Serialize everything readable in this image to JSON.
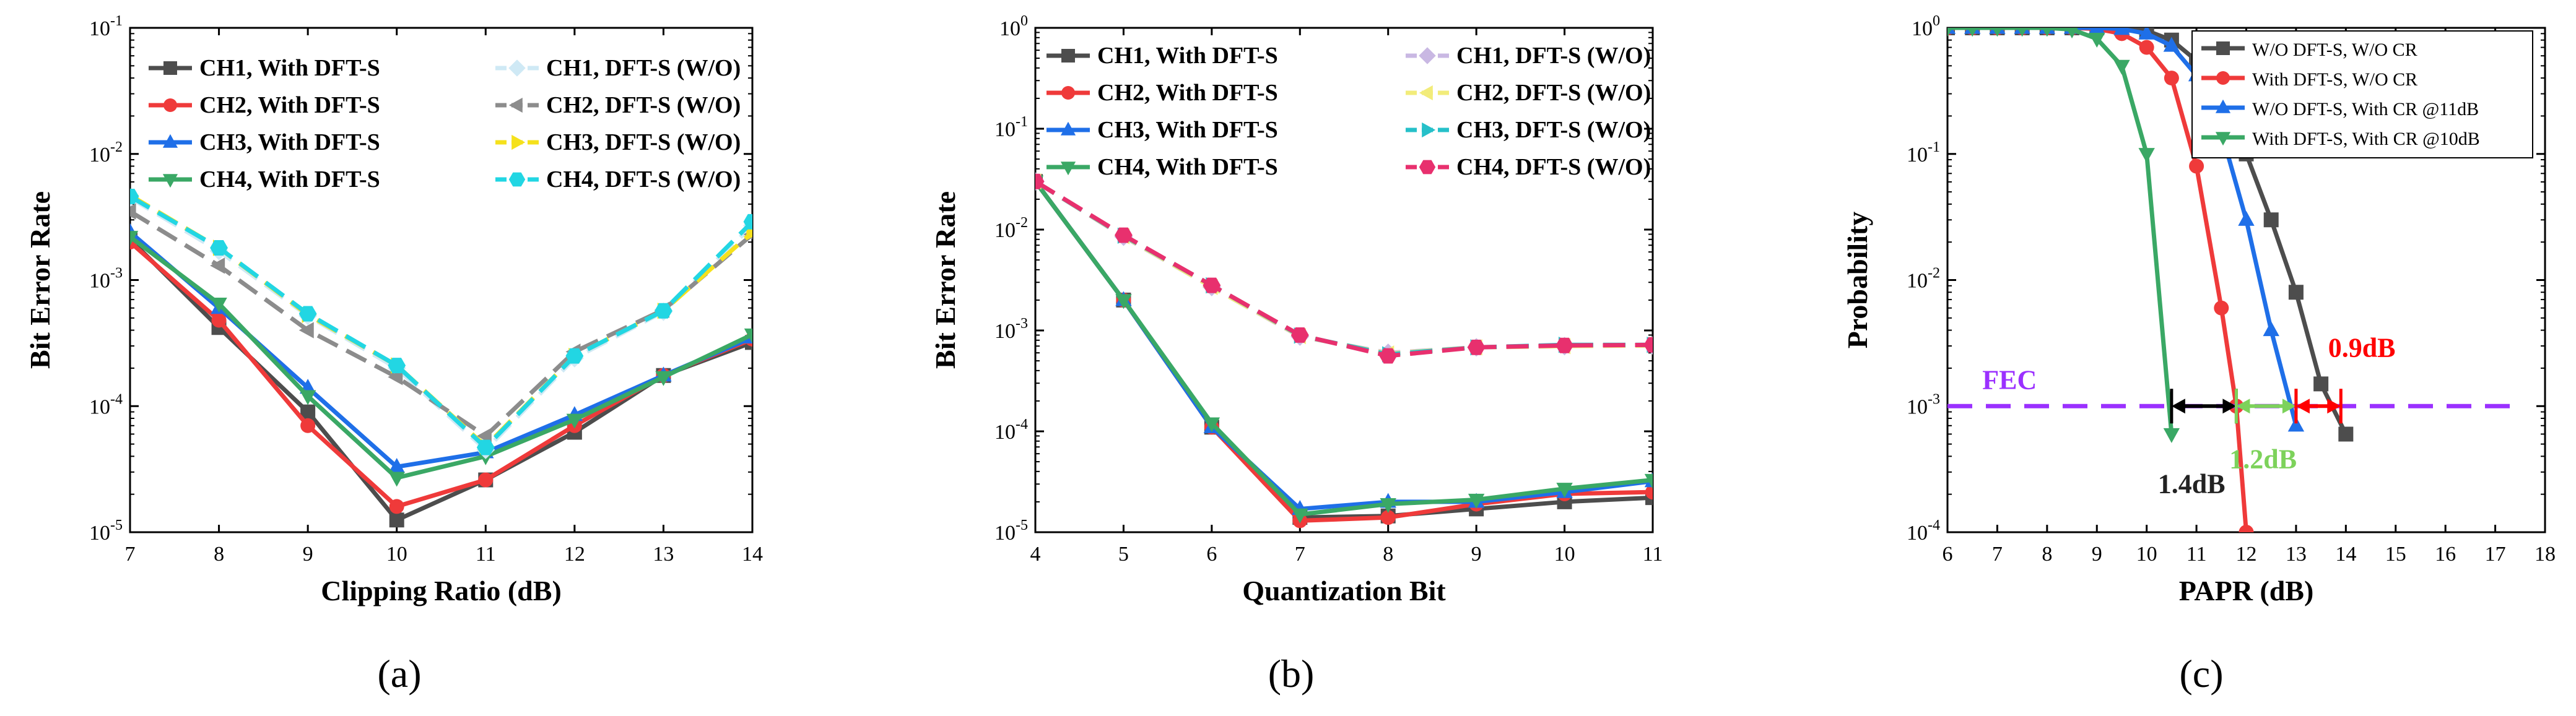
{
  "colors": {
    "ch1": "#4d4d4d",
    "ch2": "#ef3a3a",
    "ch3": "#1f6fe8",
    "ch4": "#3aa865",
    "ch1_wo": "#cfe9f5",
    "ch2_wo": "#8c8c8c",
    "ch3_wo": "#f5e11c",
    "ch4_wo": "#22d6e3",
    "b_ch1_wo": "#c9b8e3",
    "b_ch2_wo": "#f2ec7a",
    "b_ch3_wo": "#26c0c9",
    "b_ch4_wo": "#e8306e",
    "fec": "#9b30ff",
    "arrow_black": "#000000",
    "arrow_green": "#7dd25b",
    "arrow_red": "#ff0000"
  },
  "chart_data": [
    {
      "type": "line",
      "caption": "(a)",
      "xlabel": "Clipping Ratio (dB)",
      "ylabel": "Bit Error Rate",
      "yscale": "log",
      "xlim": [
        7,
        14
      ],
      "ylim_exp": [
        -5,
        -1
      ],
      "xticks": [
        "7",
        "8",
        "9",
        "10",
        "11",
        "12",
        "13",
        "14"
      ],
      "x": [
        7,
        8,
        9,
        10,
        11,
        12,
        13,
        14
      ],
      "series": [
        {
          "name": "CH1, With DFT-S",
          "colorKey": "ch1",
          "dash": false,
          "marker": "square",
          "values": [
            0.0021,
            0.00042,
            9e-05,
            1.25e-05,
            2.6e-05,
            6.2e-05,
            0.000175,
            0.00032
          ]
        },
        {
          "name": "CH2, With DFT-S",
          "colorKey": "ch2",
          "dash": false,
          "marker": "circle",
          "values": [
            0.002,
            0.00048,
            7e-05,
            1.6e-05,
            2.6e-05,
            7e-05,
            0.000175,
            0.00034
          ]
        },
        {
          "name": "CH3, With DFT-S",
          "colorKey": "ch3",
          "dash": false,
          "marker": "triangle-up",
          "values": [
            0.0024,
            0.0006,
            0.00014,
            3.3e-05,
            4.3e-05,
            8.5e-05,
            0.000175,
            0.00035
          ]
        },
        {
          "name": "CH4, With DFT-S",
          "colorKey": "ch4",
          "dash": false,
          "marker": "triangle-down",
          "values": [
            0.0022,
            0.00065,
            0.00012,
            2.7e-05,
            4e-05,
            7.8e-05,
            0.00017,
            0.00037
          ]
        },
        {
          "name": "CH1, DFT-S (W/O)",
          "colorKey": "ch1_wo",
          "dash": true,
          "marker": "diamond",
          "values": [
            0.0045,
            0.0017,
            0.00052,
            0.0002,
            4.5e-05,
            0.00024,
            0.00056,
            0.0027
          ]
        },
        {
          "name": "CH2, DFT-S (W/O)",
          "colorKey": "ch2_wo",
          "dash": true,
          "marker": "triangle-left",
          "values": [
            0.0035,
            0.0013,
            0.0004,
            0.00017,
            5.8e-05,
            0.00027,
            0.00058,
            0.0023
          ]
        },
        {
          "name": "CH3, DFT-S (W/O)",
          "colorKey": "ch3_wo",
          "dash": true,
          "marker": "triangle-right",
          "values": [
            0.0047,
            0.0018,
            0.00053,
            0.00021,
            4.8e-05,
            0.00025,
            0.00057,
            0.0024
          ]
        },
        {
          "name": "CH4, DFT-S (W/O)",
          "colorKey": "ch4_wo",
          "dash": true,
          "marker": "hexagon",
          "values": [
            0.0046,
            0.0018,
            0.00054,
            0.00021,
            4.7e-05,
            0.00025,
            0.00057,
            0.0029
          ]
        }
      ]
    },
    {
      "type": "line",
      "caption": "(b)",
      "xlabel": "Quantization Bit",
      "ylabel": "Bit Error Rate",
      "yscale": "log",
      "xlim": [
        4,
        11
      ],
      "ylim_exp": [
        -5,
        0
      ],
      "xticks": [
        "4",
        "5",
        "6",
        "7",
        "8",
        "9",
        "10",
        "11"
      ],
      "x": [
        4,
        5,
        6,
        7,
        8,
        9,
        10,
        11
      ],
      "series": [
        {
          "name": "CH1, With DFT-S",
          "colorKey": "ch1",
          "dash": false,
          "marker": "square",
          "values": [
            0.03,
            0.002,
            0.00011,
            1.4e-05,
            1.45e-05,
            1.7e-05,
            2e-05,
            2.2e-05
          ]
        },
        {
          "name": "CH2, With DFT-S",
          "colorKey": "ch2",
          "dash": false,
          "marker": "circle",
          "values": [
            0.03,
            0.002,
            0.00011,
            1.3e-05,
            1.4e-05,
            1.9e-05,
            2.4e-05,
            2.5e-05
          ]
        },
        {
          "name": "CH3, With DFT-S",
          "colorKey": "ch3",
          "dash": false,
          "marker": "triangle-up",
          "values": [
            0.03,
            0.002,
            0.00011,
            1.7e-05,
            2e-05,
            2e-05,
            2.5e-05,
            3.2e-05
          ]
        },
        {
          "name": "CH4, With DFT-S",
          "colorKey": "ch4",
          "dash": false,
          "marker": "triangle-down",
          "values": [
            0.03,
            0.002,
            0.00012,
            1.5e-05,
            1.9e-05,
            2.1e-05,
            2.7e-05,
            3.3e-05
          ]
        },
        {
          "name": "CH1, DFT-S (W/O)",
          "colorKey": "b_ch1_wo",
          "dash": true,
          "marker": "diamond",
          "values": [
            0.03,
            0.0085,
            0.0027,
            0.00087,
            0.0006,
            0.00068,
            0.0007,
            0.00071
          ]
        },
        {
          "name": "CH2, DFT-S (W/O)",
          "colorKey": "b_ch2_wo",
          "dash": true,
          "marker": "triangle-left",
          "values": [
            0.03,
            0.0086,
            0.0027,
            0.00088,
            0.00059,
            0.00068,
            0.0007,
            0.00071
          ]
        },
        {
          "name": "CH3, DFT-S (W/O)",
          "colorKey": "b_ch3_wo",
          "dash": true,
          "marker": "triangle-right",
          "values": [
            0.03,
            0.0087,
            0.0028,
            0.00089,
            0.00058,
            0.00068,
            0.00072,
            0.00072
          ]
        },
        {
          "name": "CH4, DFT-S (W/O)",
          "colorKey": "b_ch4_wo",
          "dash": true,
          "marker": "hexagon",
          "values": [
            0.03,
            0.0088,
            0.0028,
            0.0009,
            0.00056,
            0.00068,
            0.00071,
            0.00072
          ]
        }
      ]
    },
    {
      "type": "line",
      "caption": "(c)",
      "xlabel": "PAPR (dB)",
      "ylabel": "Probability",
      "yscale": "log",
      "xlim": [
        6,
        18
      ],
      "ylim_exp": [
        -4,
        0
      ],
      "xticks": [
        "6",
        "7",
        "8",
        "9",
        "10",
        "11",
        "12",
        "13",
        "14",
        "15",
        "16",
        "17",
        "18"
      ],
      "series": [
        {
          "name": "W/O DFT-S, W/O CR",
          "colorKey": "ch1",
          "dash": false,
          "marker": "square",
          "x": [
            6,
            6.5,
            7,
            7.5,
            8,
            8.5,
            9,
            9.5,
            10,
            10.5,
            11,
            11.5,
            12,
            12.5,
            13,
            13.5,
            14
          ],
          "values": [
            1,
            1,
            1,
            1,
            1,
            1,
            1,
            0.99,
            0.95,
            0.8,
            0.55,
            0.28,
            0.1,
            0.03,
            0.008,
            0.0015,
            0.0006
          ]
        },
        {
          "name": "With DFT-S, W/O CR",
          "colorKey": "ch2",
          "dash": false,
          "marker": "circle",
          "x": [
            6,
            6.5,
            7,
            7.5,
            8,
            8.5,
            9,
            9.5,
            10,
            10.5,
            11,
            11.5,
            11.8,
            12
          ],
          "values": [
            1,
            1,
            1,
            1,
            1,
            1,
            0.98,
            0.9,
            0.7,
            0.4,
            0.08,
            0.006,
            0.001,
            0.0001
          ]
        },
        {
          "name": "W/O DFT-S, With CR @11dB",
          "colorKey": "ch3",
          "dash": false,
          "marker": "triangle-up",
          "x": [
            6,
            6.5,
            7,
            7.5,
            8,
            8.5,
            9,
            9.5,
            10,
            10.5,
            11,
            11.5,
            12,
            12.5,
            13
          ],
          "values": [
            1,
            1,
            1,
            1,
            1,
            1,
            1,
            0.98,
            0.9,
            0.72,
            0.42,
            0.15,
            0.03,
            0.004,
            0.0007
          ]
        },
        {
          "name": "With DFT-S, With CR @10dB",
          "colorKey": "ch4",
          "dash": false,
          "marker": "triangle-down",
          "x": [
            6,
            6.5,
            7,
            7.5,
            8,
            8.5,
            9,
            9.5,
            10,
            10.5
          ],
          "values": [
            1,
            1,
            1,
            1,
            1,
            0.97,
            0.82,
            0.5,
            0.1,
            0.0006
          ]
        }
      ],
      "fec_level": 0.001,
      "fec_label": "FEC",
      "annotations": [
        {
          "text": "1.4dB",
          "colorKey": "arrow_black",
          "from_x": 10.5,
          "to_x": 11.8
        },
        {
          "text": "1.2dB",
          "colorKey": "arrow_green",
          "from_x": 11.8,
          "to_x": 13.0
        },
        {
          "text": "0.9dB",
          "colorKey": "arrow_red",
          "from_x": 13.0,
          "to_x": 13.9
        }
      ]
    }
  ]
}
